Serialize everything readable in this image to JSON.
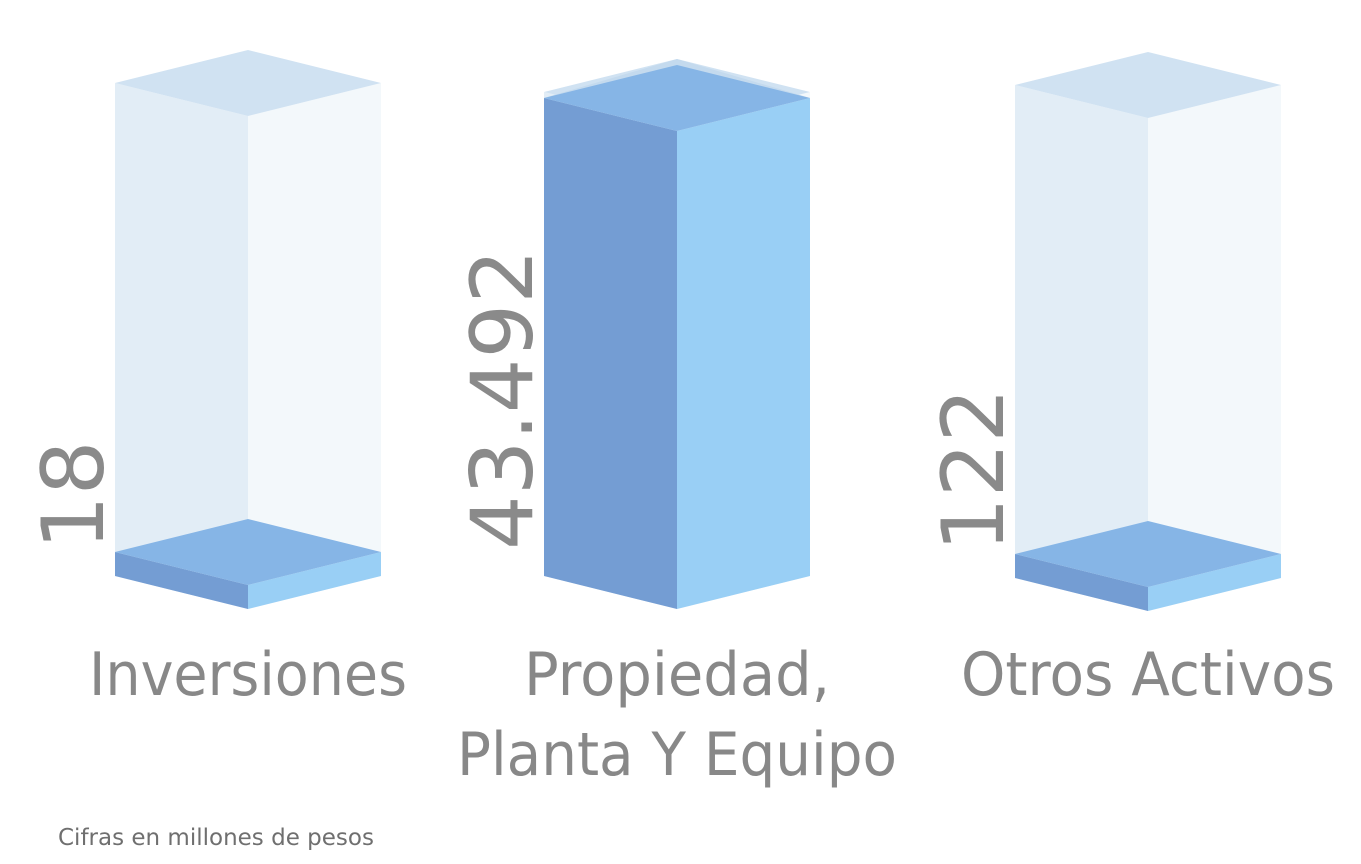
{
  "chart_data": {
    "type": "bar",
    "categories": [
      "Inversiones",
      "Propiedad, Planta Y Equipo",
      "Otros Activos"
    ],
    "category_lines": [
      [
        "Inversiones"
      ],
      [
        "Propiedad,",
        "Planta Y Equipo"
      ],
      [
        "Otros Activos"
      ]
    ],
    "values": [
      18,
      43492,
      122
    ],
    "value_labels": [
      "18",
      "43.492",
      "122"
    ],
    "ylim": [
      0,
      43492
    ],
    "footnote": "Cifras en millones de pesos",
    "colors": {
      "ghost_top": "#d0e2f2",
      "ghost_left": "#e2edf6",
      "ghost_right": "#f3f8fb",
      "ghost_rim": "#c4daee",
      "bar_top": "#86b5e6",
      "bar_left": "#749dd3",
      "bar_right": "#99cff5",
      "text": "#888888"
    }
  }
}
